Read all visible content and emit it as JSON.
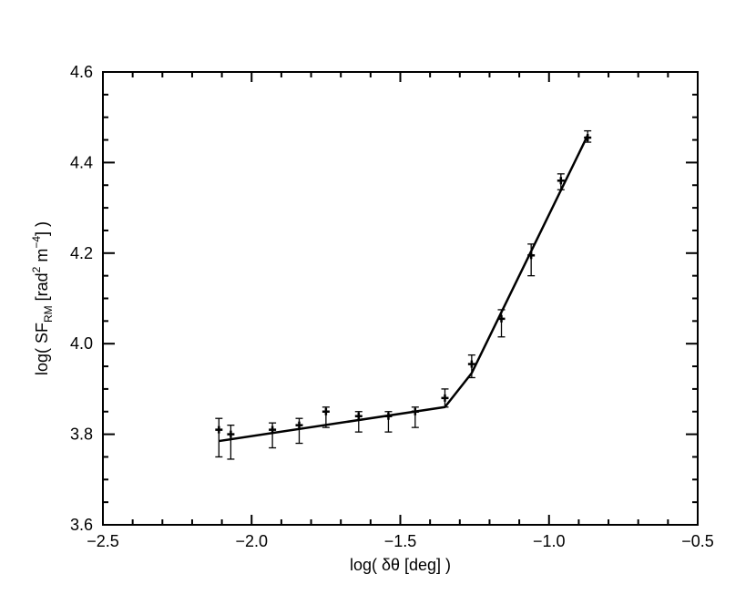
{
  "chart_data": {
    "type": "scatter",
    "xlabel": "log( δθ [deg] )",
    "ylabel": {
      "prefix": "log( SF",
      "subscript": "RM",
      "middle": " [rad",
      "sup1": "2",
      "middle2": " m",
      "sup2": "−4",
      "suffix": "] )"
    },
    "xlim": [
      -2.5,
      -0.5
    ],
    "ylim": [
      3.6,
      4.6
    ],
    "x_ticks": [
      -2.5,
      -2.0,
      -1.5,
      -1.0,
      -0.5
    ],
    "x_tick_labels": [
      "−2.5",
      "−2.0",
      "−1.5",
      "−1.0",
      "−0.5"
    ],
    "y_ticks": [
      3.6,
      3.8,
      4.0,
      4.2,
      4.4,
      4.6
    ],
    "y_tick_labels": [
      "3.6",
      "3.8",
      "4.0",
      "4.2",
      "4.4",
      "4.6"
    ],
    "x_minor_step": 0.1,
    "y_minor_step": 0.05,
    "grid": false,
    "series": [
      {
        "style": "points-with-errorbars",
        "points": [
          {
            "x": -2.11,
            "y": 3.81,
            "err_low": 0.06,
            "err_high": 0.025
          },
          {
            "x": -2.07,
            "y": 3.8,
            "err_low": 0.055,
            "err_high": 0.02
          },
          {
            "x": -1.93,
            "y": 3.81,
            "err_low": 0.04,
            "err_high": 0.015
          },
          {
            "x": -1.84,
            "y": 3.82,
            "err_low": 0.04,
            "err_high": 0.015
          },
          {
            "x": -1.75,
            "y": 3.85,
            "err_low": 0.035,
            "err_high": 0.01
          },
          {
            "x": -1.64,
            "y": 3.84,
            "err_low": 0.035,
            "err_high": 0.01
          },
          {
            "x": -1.54,
            "y": 3.84,
            "err_low": 0.035,
            "err_high": 0.01
          },
          {
            "x": -1.45,
            "y": 3.85,
            "err_low": 0.035,
            "err_high": 0.01
          },
          {
            "x": -1.35,
            "y": 3.88,
            "err_low": 0.02,
            "err_high": 0.02
          },
          {
            "x": -1.26,
            "y": 3.955,
            "err_low": 0.03,
            "err_high": 0.02
          },
          {
            "x": -1.16,
            "y": 4.055,
            "err_low": 0.04,
            "err_high": 0.02
          },
          {
            "x": -1.06,
            "y": 4.195,
            "err_low": 0.045,
            "err_high": 0.025
          },
          {
            "x": -0.96,
            "y": 4.36,
            "err_low": 0.02,
            "err_high": 0.015
          },
          {
            "x": -0.87,
            "y": 4.455,
            "err_low": 0.01,
            "err_high": 0.015
          }
        ]
      },
      {
        "style": "line",
        "x": [
          -2.11,
          -1.35,
          -1.26,
          -0.87
        ],
        "y": [
          3.785,
          3.86,
          3.935,
          4.46
        ]
      }
    ]
  }
}
